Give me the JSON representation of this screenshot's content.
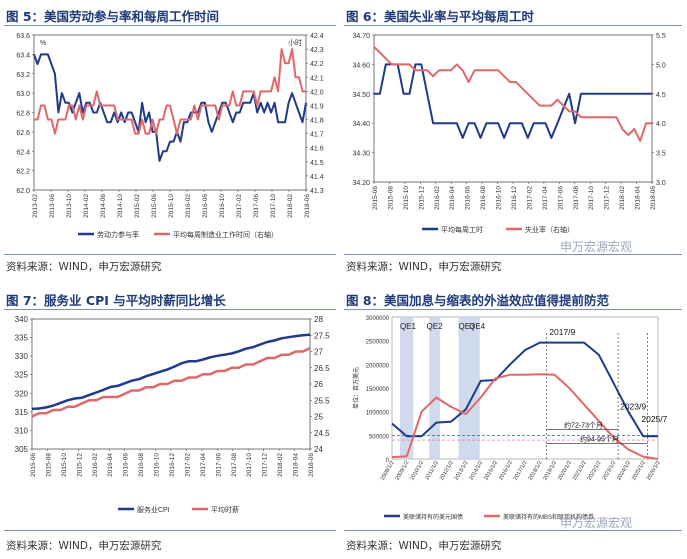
{
  "panels": [
    {
      "title": "图 5：美国劳动参与率和每周工作时间",
      "source": "资料来源：WIND，申万宏源研究"
    },
    {
      "title": "图 6：美国失业率与平均每周工时",
      "source": "资料来源：WIND，申万宏源研究"
    },
    {
      "title": "图 7：服务业 CPI 与平均时薪同比增长",
      "source": "资料来源：WIND，申万宏源研究"
    },
    {
      "title": "图 8：美国加息与缩表的外溢效应值得提前防范",
      "source": "资料来源：WIND，申万宏源研究"
    }
  ],
  "watermark": "申万宏源宏观",
  "colors": {
    "navy": "#1f3a8a",
    "red": "#e06868",
    "title": "#1f3a78",
    "qe_band": "#c7d4ea"
  },
  "chart_data": [
    {
      "type": "line",
      "x_ticks": [
        "2013-02",
        "2013-06",
        "2013-10",
        "2014-02",
        "2014-06",
        "2014-10",
        "2015-02",
        "2015-06",
        "2015-10",
        "2016-02",
        "2016-06",
        "2016-10",
        "2017-02",
        "2017-06",
        "2017-10",
        "2018-02",
        "2018-06"
      ],
      "ylabel_left": "%",
      "ylabel_right": "小时",
      "ylim": [
        62.0,
        63.6
      ],
      "y2lim": [
        41.3,
        42.4
      ],
      "y_ticks": [
        "62.0",
        "62.2",
        "62.4",
        "62.6",
        "62.8",
        "63.0",
        "63.2",
        "63.4",
        "63.6"
      ],
      "y2_ticks": [
        "41.3",
        "41.4",
        "41.5",
        "41.6",
        "41.7",
        "41.8",
        "41.9",
        "42.0",
        "42.1",
        "42.2",
        "42.3",
        "42.4"
      ],
      "series": [
        {
          "name": "劳动力参与率",
          "axis": "left",
          "values": [
            63.4,
            63.3,
            63.4,
            63.4,
            63.4,
            63.3,
            63.2,
            62.8,
            63.0,
            62.9,
            62.9,
            62.8,
            62.9,
            63.0,
            62.8,
            62.9,
            62.9,
            62.8,
            62.8,
            62.9,
            62.8,
            62.7,
            62.7,
            62.8,
            62.7,
            62.8,
            62.7,
            62.8,
            62.8,
            62.7,
            62.6,
            62.9,
            62.7,
            62.8,
            62.6,
            62.6,
            62.3,
            62.4,
            62.4,
            62.5,
            62.5,
            62.6,
            62.5,
            62.7,
            62.7,
            62.8,
            62.8,
            62.8,
            62.9,
            62.9,
            62.7,
            62.6,
            62.7,
            62.8,
            62.9,
            62.9,
            62.8,
            62.7,
            62.8,
            62.8,
            62.9,
            62.9,
            62.9,
            63.0,
            62.8,
            62.9,
            62.8,
            62.9,
            62.8,
            62.9,
            62.7,
            62.7,
            62.7,
            62.9,
            63.0,
            62.9,
            62.8,
            62.7,
            62.9
          ]
        },
        {
          "name": "平均每周制造业工作时间（右轴）",
          "axis": "right",
          "values": [
            41.8,
            41.8,
            41.9,
            41.9,
            41.8,
            41.8,
            41.7,
            41.8,
            41.8,
            41.8,
            41.9,
            41.9,
            41.8,
            41.9,
            41.8,
            41.9,
            41.9,
            41.9,
            42.0,
            41.9,
            41.9,
            41.9,
            41.9,
            41.9,
            41.8,
            41.8,
            41.8,
            41.8,
            41.8,
            41.7,
            41.7,
            41.8,
            41.7,
            41.7,
            41.8,
            41.7,
            41.8,
            41.8,
            41.9,
            41.9,
            41.8,
            41.7,
            41.8,
            41.8,
            41.8,
            41.8,
            41.9,
            41.8,
            41.9,
            41.9,
            41.9,
            41.9,
            41.9,
            41.8,
            41.9,
            41.9,
            41.9,
            42.0,
            41.9,
            41.9,
            42.0,
            42.0,
            42.0,
            42.0,
            41.9,
            42.0,
            42.0,
            42.0,
            42.0,
            42.1,
            42.0,
            42.3,
            42.2,
            42.2,
            42.3,
            42.1,
            42.1,
            42.0,
            42.0
          ]
        }
      ]
    },
    {
      "type": "line",
      "x_ticks": [
        "2015-06",
        "2015-08",
        "2015-10",
        "2015-12",
        "2016-02",
        "2016-04",
        "2016-06",
        "2016-08",
        "2016-10",
        "2016-12",
        "2017-02",
        "2017-04",
        "2017-06",
        "2017-08",
        "2017-10",
        "2017-12",
        "2018-02",
        "2018-04",
        "2018-06"
      ],
      "ylim": [
        34.2,
        34.7
      ],
      "y2lim": [
        3.0,
        5.5
      ],
      "y_ticks": [
        "34.20",
        "34.30",
        "34.40",
        "34.50",
        "34.60",
        "34.70"
      ],
      "y2_ticks": [
        "3.0",
        "3.5",
        "4.0",
        "4.5",
        "5.0",
        "5.5"
      ],
      "series": [
        {
          "name": "平均每周工时",
          "axis": "left",
          "values": [
            34.5,
            34.5,
            34.6,
            34.6,
            34.6,
            34.5,
            34.5,
            34.6,
            34.6,
            34.5,
            34.4,
            34.4,
            34.4,
            34.4,
            34.4,
            34.35,
            34.4,
            34.4,
            34.35,
            34.4,
            34.4,
            34.4,
            34.35,
            34.4,
            34.4,
            34.4,
            34.35,
            34.4,
            34.4,
            34.4,
            34.35,
            34.4,
            34.45,
            34.5,
            34.4,
            34.5,
            34.5,
            34.5,
            34.5,
            34.5,
            34.5,
            34.5,
            34.5,
            34.5,
            34.5,
            34.5,
            34.5,
            34.5
          ]
        },
        {
          "name": "失业率（右轴）",
          "axis": "right",
          "values": [
            5.3,
            5.2,
            5.1,
            5.0,
            5.0,
            5.0,
            5.0,
            4.9,
            4.9,
            4.9,
            4.8,
            4.9,
            4.9,
            4.9,
            5.0,
            4.9,
            4.7,
            4.9,
            4.9,
            4.9,
            4.9,
            4.9,
            4.8,
            4.7,
            4.7,
            4.6,
            4.5,
            4.4,
            4.3,
            4.3,
            4.3,
            4.4,
            4.3,
            4.2,
            4.2,
            4.1,
            4.1,
            4.1,
            4.1,
            4.1,
            4.1,
            4.1,
            3.9,
            3.8,
            3.9,
            3.7,
            4.0,
            4.0
          ]
        }
      ]
    },
    {
      "type": "line",
      "x_ticks": [
        "2015-06",
        "2015-08",
        "2015-10",
        "2015-12",
        "2016-02",
        "2016-04",
        "2016-06",
        "2016-08",
        "2016-10",
        "2016-12",
        "2017-02",
        "2017-04",
        "2017-06",
        "2017-08",
        "2017-10",
        "2017-12",
        "2018-02",
        "2018-04",
        "2018-06"
      ],
      "ylim": [
        305,
        340
      ],
      "y2lim": [
        24,
        28
      ],
      "y_ticks": [
        "305",
        "310",
        "315",
        "320",
        "325",
        "330",
        "335",
        "340"
      ],
      "y2_ticks": [
        "24",
        "24.5",
        "25",
        "25.5",
        "26",
        "26.5",
        "27",
        "27.5",
        "28"
      ],
      "series": [
        {
          "name": "服务业CPI",
          "axis": "left",
          "values": [
            315.8,
            315.9,
            316.2,
            316.7,
            317.4,
            318.1,
            318.6,
            318.8,
            319.5,
            320.2,
            320.9,
            321.7,
            322.0,
            322.7,
            323.4,
            323.8,
            324.6,
            325.2,
            325.8,
            326.4,
            327.2,
            328.1,
            328.6,
            328.6,
            329.1,
            329.7,
            330.1,
            330.4,
            330.7,
            331.3,
            332.0,
            332.4,
            333.1,
            333.8,
            334.2,
            334.8,
            335.1,
            335.4,
            335.6,
            335.8
          ]
        },
        {
          "name": "平均时薪",
          "axis": "right",
          "values": [
            25.0,
            25.1,
            25.1,
            25.2,
            25.2,
            25.3,
            25.3,
            25.4,
            25.5,
            25.5,
            25.6,
            25.6,
            25.6,
            25.7,
            25.8,
            25.8,
            25.9,
            25.9,
            26.0,
            26.0,
            26.1,
            26.1,
            26.2,
            26.2,
            26.3,
            26.3,
            26.4,
            26.4,
            26.5,
            26.5,
            26.6,
            26.6,
            26.7,
            26.8,
            26.8,
            26.9,
            26.9,
            27.0,
            27.0,
            27.1
          ]
        }
      ]
    },
    {
      "type": "line",
      "ylabel": "单位：百万美元",
      "x_ticks": [
        "2008/1/2",
        "2009/1/2",
        "2010/1/2",
        "2011/1/2",
        "2012/1/2",
        "2013/1/2",
        "2014/1/2",
        "2015/1/2",
        "2016/1/2",
        "2017/1/2",
        "2018/1/2",
        "2019/1/2",
        "2020/1/2",
        "2021/1/2",
        "2022/1/2",
        "2023/1/2",
        "2024/1/2",
        "2025/1/2",
        "2026/1/2"
      ],
      "y_ticks": [
        "0",
        "500000",
        "1000000",
        "1500000",
        "2000000",
        "2500000",
        "3000000"
      ],
      "ylim": [
        0,
        3000000
      ],
      "bands": [
        "QE1",
        "QE2",
        "QE3",
        "QE4"
      ],
      "annotations": [
        "2017/9",
        "2023/9",
        "2025/7",
        "约72-73个月",
        "约94-95个月"
      ],
      "series": [
        {
          "name": "美联储持有的美元国债",
          "values": [
            750000,
            480000,
            480000,
            770000,
            790000,
            1050000,
            1650000,
            1670000,
            2000000,
            2300000,
            2460000,
            2460000,
            2460000,
            2460000,
            2200000,
            1600000,
            1000000,
            480000,
            480000
          ]
        },
        {
          "name": "美联储持有的MBS和联邦机构债券",
          "values": [
            40000,
            60000,
            1000000,
            1300000,
            1100000,
            950000,
            1300000,
            1700000,
            1780000,
            1780000,
            1790000,
            1780000,
            1500000,
            1150000,
            800000,
            450000,
            200000,
            50000,
            0
          ]
        }
      ]
    }
  ]
}
